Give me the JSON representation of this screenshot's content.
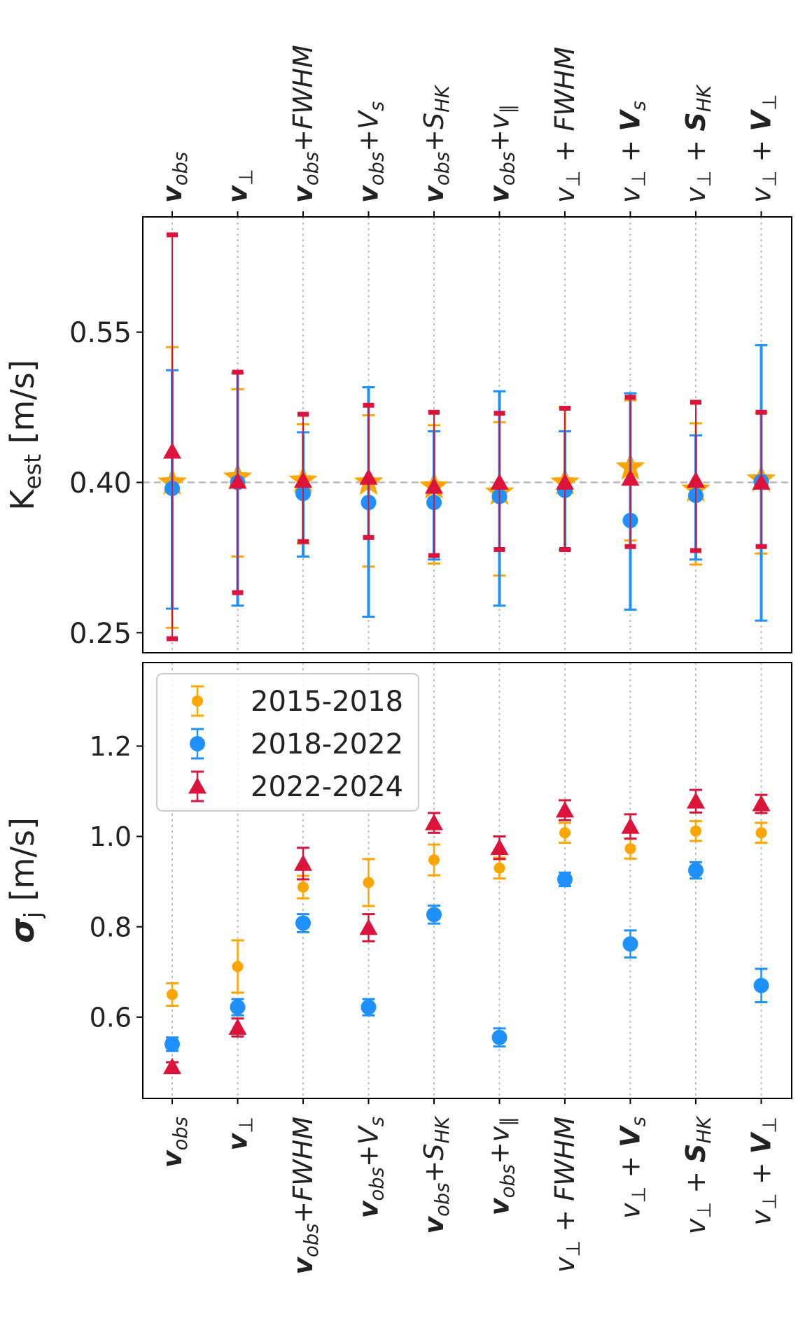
{
  "chart_data": [
    {
      "type": "scatter",
      "panel": "top",
      "ylabel_main": "K",
      "ylabel_sub": "est",
      "ylabel_unit": " [m/s]",
      "ylim": [
        0.23,
        0.665
      ],
      "yticks": [
        "0.25",
        "0.40",
        "0.55"
      ],
      "reference_line": 0.4,
      "grid": "vertical dotted",
      "categories": [
        "v_obs",
        "v_perp",
        "v_obs+FWHM",
        "v_obs+V_s",
        "v_obs+S_HK",
        "v_obs+v_par",
        "v_perp + FWHM",
        "v_perp + V_s",
        "v_perp + S_HK",
        "v_perp + V_perp"
      ],
      "series": [
        {
          "name": "2015-2018",
          "color": "#FFA500",
          "marker": "star",
          "values": [
            0.4,
            0.405,
            0.402,
            0.4,
            0.396,
            0.39,
            0.4,
            0.415,
            0.393,
            0.403
          ],
          "lower": [
            0.255,
            0.326,
            0.339,
            0.316,
            0.319,
            0.307,
            0.332,
            0.342,
            0.318,
            0.329
          ],
          "upper": [
            0.535,
            0.493,
            0.458,
            0.467,
            0.457,
            0.46,
            0.475,
            0.482,
            0.459,
            0.469
          ]
        },
        {
          "name": "2018-2022",
          "color": "#1E90FF",
          "marker": "circle",
          "values": [
            0.394,
            0.4,
            0.389,
            0.38,
            0.38,
            0.386,
            0.392,
            0.362,
            0.387,
            0.401
          ],
          "lower": [
            0.274,
            0.277,
            0.326,
            0.266,
            0.323,
            0.277,
            0.333,
            0.273,
            0.323,
            0.262
          ],
          "upper": [
            0.512,
            0.509,
            0.45,
            0.495,
            0.451,
            0.491,
            0.451,
            0.489,
            0.447,
            0.537
          ]
        },
        {
          "name": "2022-2024",
          "color": "#DC143C",
          "marker": "triangle",
          "values": [
            0.431,
            0.401,
            0.402,
            0.405,
            0.396,
            0.4,
            0.4,
            0.404,
            0.402,
            0.4
          ],
          "lower": [
            0.244,
            0.29,
            0.341,
            0.345,
            0.327,
            0.333,
            0.333,
            0.336,
            0.332,
            0.336
          ],
          "upper": [
            0.647,
            0.51,
            0.468,
            0.477,
            0.47,
            0.469,
            0.474,
            0.485,
            0.48,
            0.47
          ]
        }
      ]
    },
    {
      "type": "scatter",
      "panel": "bottom",
      "ylabel_main": "σ",
      "ylabel_sub": "j",
      "ylabel_unit": " [m/s]",
      "ylim": [
        0.42,
        1.385
      ],
      "yticks": [
        "0.6",
        "0.8",
        "1.0",
        "1.2"
      ],
      "grid": "vertical dotted",
      "legend": "upper-left",
      "categories": [
        "v_obs",
        "v_perp",
        "v_obs+FWHM",
        "v_obs+V_s",
        "v_obs+S_HK",
        "v_obs+v_par",
        "v_perp + FWHM",
        "v_perp + V_s",
        "v_perp + S_HK",
        "v_perp + V_perp"
      ],
      "series": [
        {
          "name": "2015-2018",
          "color": "#FFA500",
          "marker": "circle-small",
          "values": [
            0.65,
            0.712,
            0.888,
            0.898,
            0.948,
            0.93,
            1.008,
            0.973,
            1.012,
            1.008
          ],
          "err": [
            0.025,
            0.058,
            0.025,
            0.052,
            0.034,
            0.023,
            0.022,
            0.022,
            0.022,
            0.022
          ]
        },
        {
          "name": "2018-2022",
          "color": "#1E90FF",
          "marker": "circle",
          "values": [
            0.54,
            0.622,
            0.808,
            0.622,
            0.827,
            0.555,
            0.905,
            0.762,
            0.925,
            0.67
          ],
          "err": [
            0.015,
            0.018,
            0.02,
            0.018,
            0.02,
            0.02,
            0.015,
            0.03,
            0.018,
            0.037
          ]
        },
        {
          "name": "2022-2024",
          "color": "#DC143C",
          "marker": "triangle",
          "values": [
            0.49,
            0.577,
            0.94,
            0.798,
            1.03,
            0.975,
            1.058,
            1.022,
            1.078,
            1.072
          ],
          "err": [
            0.01,
            0.02,
            0.035,
            0.03,
            0.022,
            0.025,
            0.022,
            0.027,
            0.025,
            0.02
          ]
        }
      ]
    }
  ],
  "axis_labels": [
    {
      "main": "v",
      "sub": "obs",
      "main_bold": true,
      "extra": ""
    },
    {
      "main": "v",
      "sub": "⊥",
      "main_bold": true,
      "extra": ""
    },
    {
      "main": "v",
      "sub": "obs",
      "main_bold": true,
      "extra": "+FWHM"
    },
    {
      "main": "v",
      "sub": "obs",
      "main_bold": true,
      "extra": "+V",
      "extra_sub": "s",
      "extra_bold": false
    },
    {
      "main": "v",
      "sub": "obs",
      "main_bold": true,
      "extra": "+S",
      "extra_sub": "HK",
      "extra_bold": false
    },
    {
      "main": "v",
      "sub": "obs",
      "main_bold": true,
      "extra": "+v",
      "extra_sub": "∥",
      "extra_bold": false
    },
    {
      "main": "v",
      "sub": "⊥",
      "main_bold": false,
      "extra": " + FWHM"
    },
    {
      "main": "v",
      "sub": "⊥",
      "main_bold": false,
      "extra": " + V",
      "extra_sub": "s",
      "extra_bold": true
    },
    {
      "main": "v",
      "sub": "⊥",
      "main_bold": false,
      "extra": " + S",
      "extra_sub": "HK",
      "extra_bold": true
    },
    {
      "main": "v",
      "sub": "⊥",
      "main_bold": false,
      "extra": " + V",
      "extra_sub": "⊥",
      "extra_bold": true
    }
  ]
}
